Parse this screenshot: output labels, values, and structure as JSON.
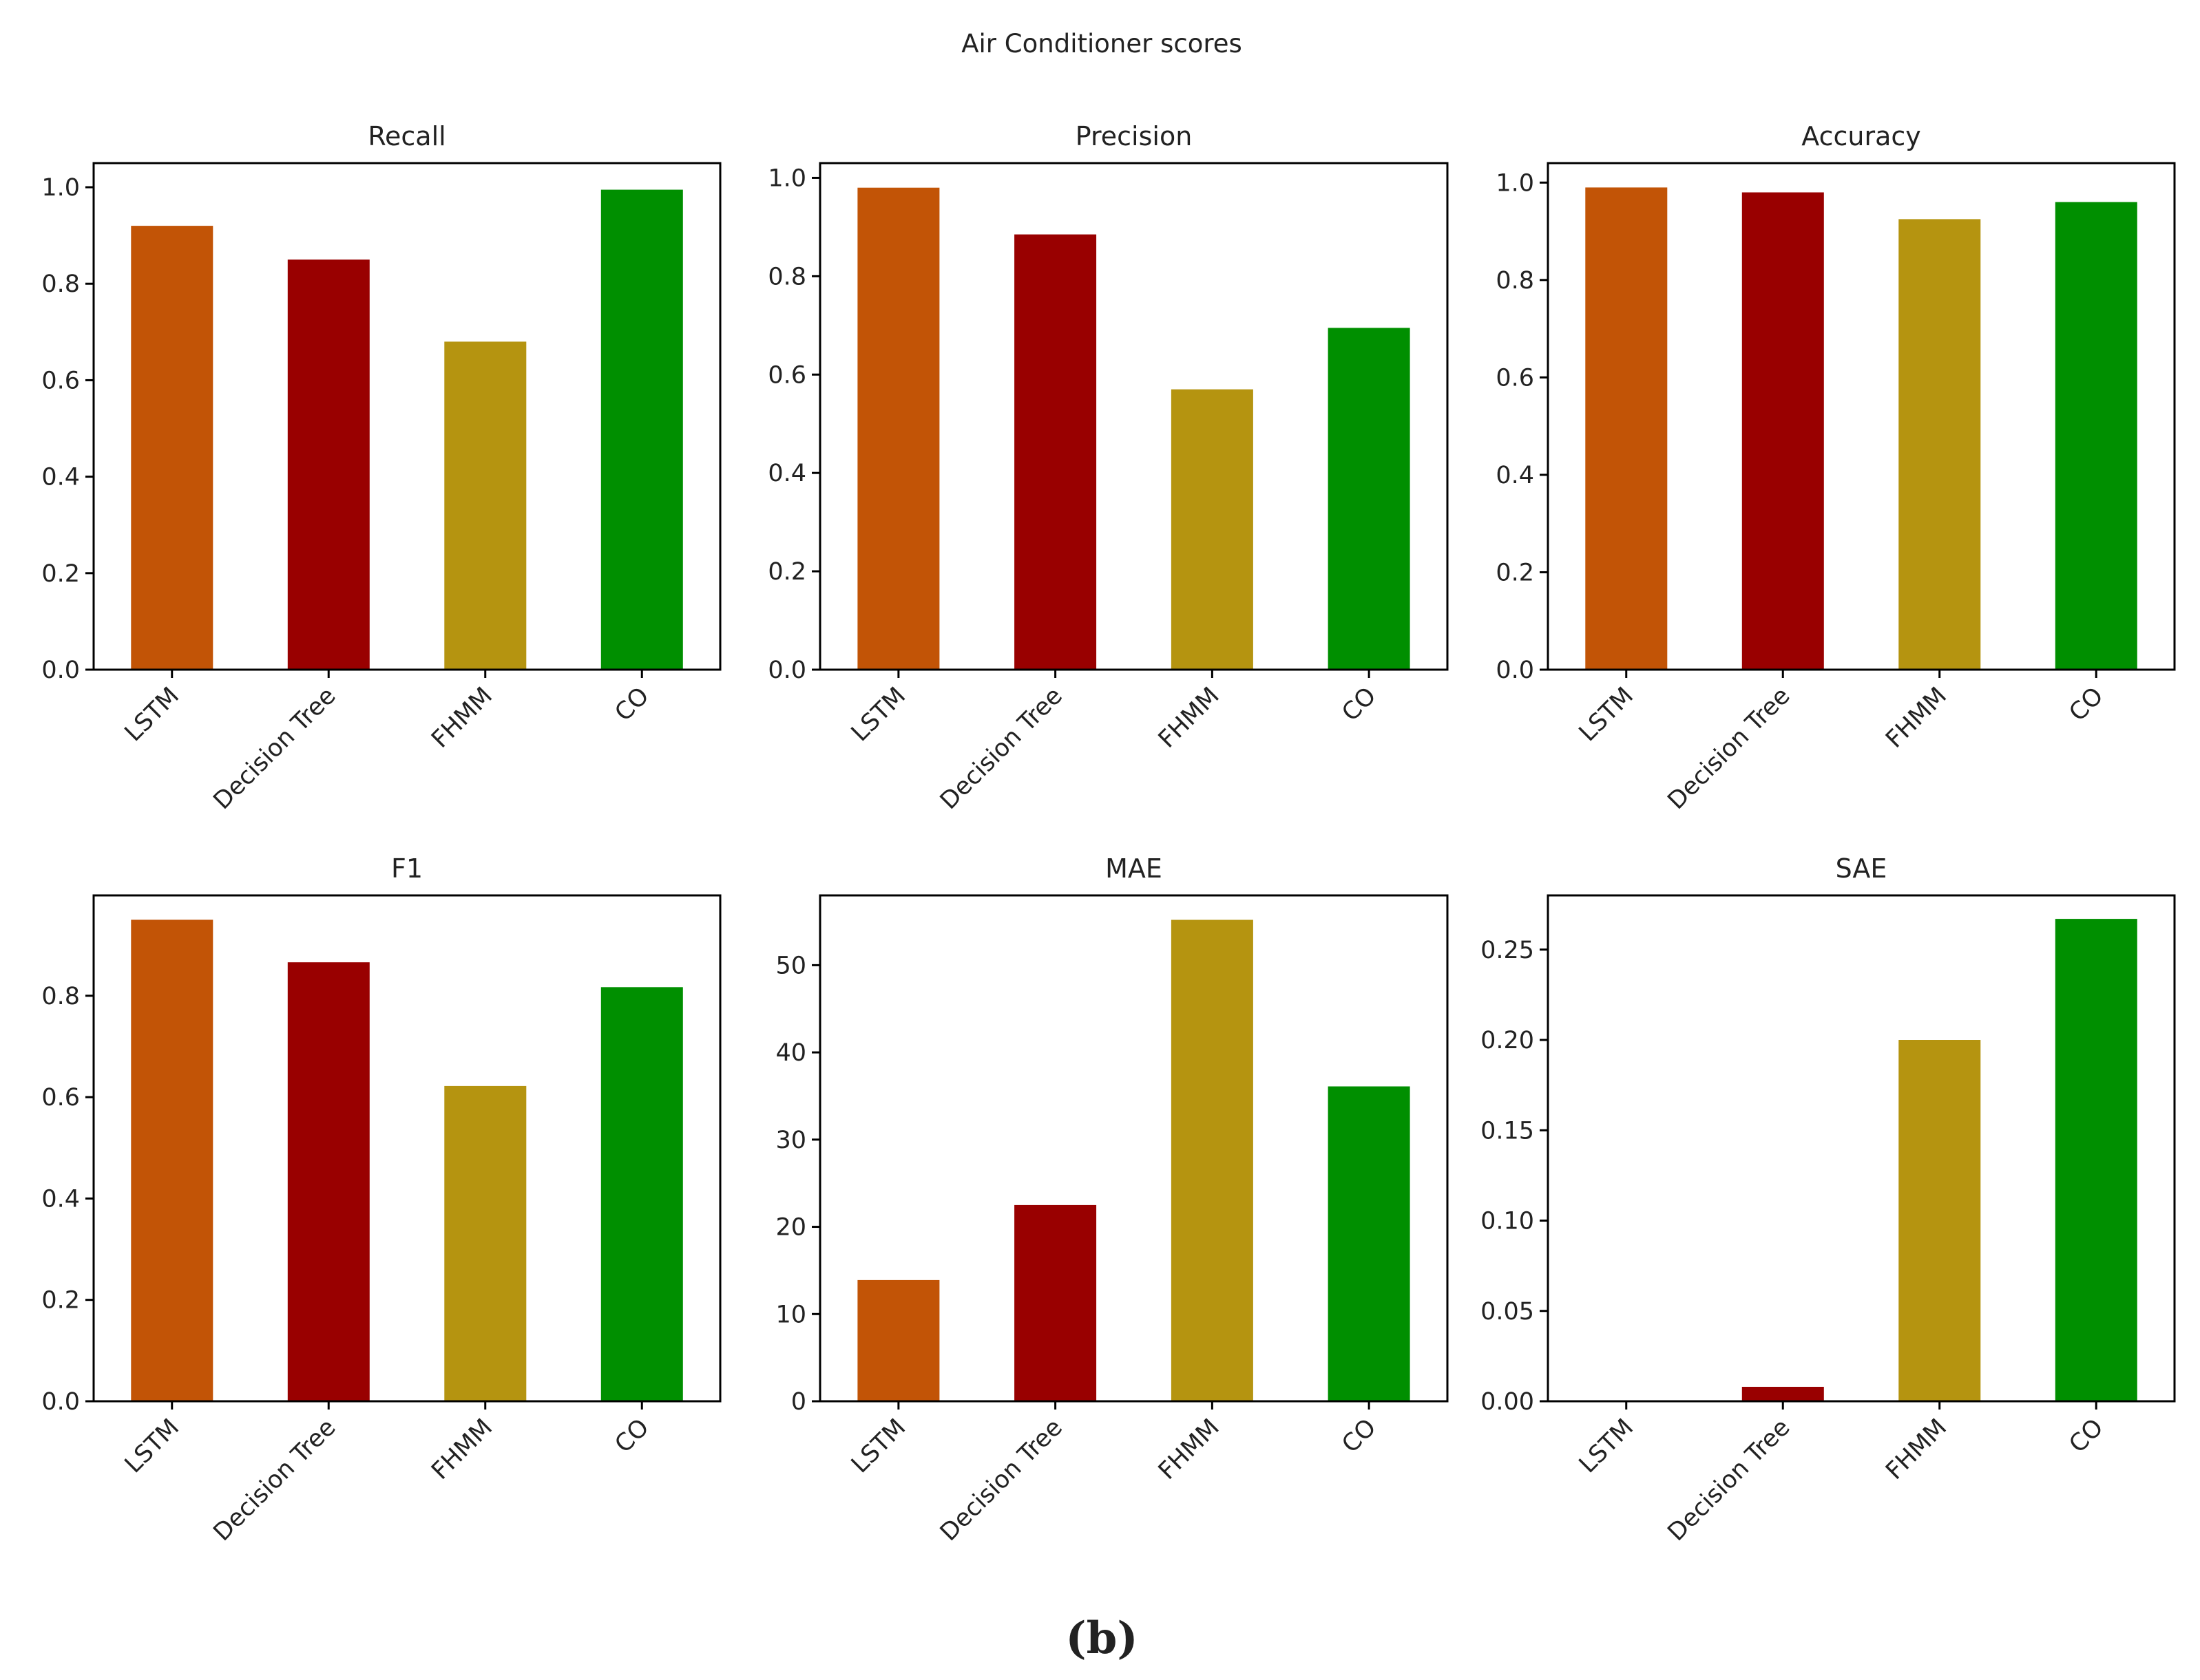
{
  "figure": {
    "title": "Air Conditioner scores",
    "caption": "(b)"
  },
  "colors": [
    "#c25406",
    "#990000",
    "#b59410",
    "#008f00"
  ],
  "chart_data": [
    {
      "type": "bar",
      "title": "Recall",
      "categories": [
        "LSTM",
        "Decision Tree",
        "FHMM",
        "CO"
      ],
      "values": [
        0.92,
        0.85,
        0.68,
        0.995
      ],
      "ylim": [
        0,
        1.05
      ],
      "yticks": [
        0.0,
        0.2,
        0.4,
        0.6,
        0.8,
        1.0
      ],
      "ytick_labels": [
        "0.0",
        "0.2",
        "0.4",
        "0.6",
        "0.8",
        "1.0"
      ],
      "xlabel": "",
      "ylabel": "",
      "grid": false
    },
    {
      "type": "bar",
      "title": "Precision",
      "categories": [
        "LSTM",
        "Decision Tree",
        "FHMM",
        "CO"
      ],
      "values": [
        0.98,
        0.885,
        0.57,
        0.695
      ],
      "ylim": [
        0,
        1.03
      ],
      "yticks": [
        0.0,
        0.2,
        0.4,
        0.6,
        0.8,
        1.0
      ],
      "ytick_labels": [
        "0.0",
        "0.2",
        "0.4",
        "0.6",
        "0.8",
        "1.0"
      ],
      "xlabel": "",
      "ylabel": "",
      "grid": false
    },
    {
      "type": "bar",
      "title": "Accuracy",
      "categories": [
        "LSTM",
        "Decision Tree",
        "FHMM",
        "CO"
      ],
      "values": [
        0.99,
        0.98,
        0.925,
        0.96
      ],
      "ylim": [
        0,
        1.04
      ],
      "yticks": [
        0.0,
        0.2,
        0.4,
        0.6,
        0.8,
        1.0
      ],
      "ytick_labels": [
        "0.0",
        "0.2",
        "0.4",
        "0.6",
        "0.8",
        "1.0"
      ],
      "xlabel": "",
      "ylabel": "",
      "grid": false
    },
    {
      "type": "bar",
      "title": "F1",
      "categories": [
        "LSTM",
        "Decision Tree",
        "FHMM",
        "CO"
      ],
      "values": [
        0.95,
        0.866,
        0.622,
        0.817
      ],
      "ylim": [
        0,
        0.998
      ],
      "yticks": [
        0.0,
        0.2,
        0.4,
        0.6,
        0.8
      ],
      "ytick_labels": [
        "0.0",
        "0.2",
        "0.4",
        "0.6",
        "0.8"
      ],
      "xlabel": "",
      "ylabel": "",
      "grid": false
    },
    {
      "type": "bar",
      "title": "MAE",
      "categories": [
        "LSTM",
        "Decision Tree",
        "FHMM",
        "CO"
      ],
      "values": [
        13.9,
        22.5,
        55.2,
        36.1
      ],
      "ylim": [
        0,
        58
      ],
      "yticks": [
        0,
        10,
        20,
        30,
        40,
        50
      ],
      "ytick_labels": [
        "0",
        "10",
        "20",
        "30",
        "40",
        "50"
      ],
      "xlabel": "",
      "ylabel": "",
      "grid": false
    },
    {
      "type": "bar",
      "title": "SAE",
      "categories": [
        "LSTM",
        "Decision Tree",
        "FHMM",
        "CO"
      ],
      "values": [
        0.0,
        0.008,
        0.2,
        0.267
      ],
      "ylim": [
        0,
        0.28
      ],
      "yticks": [
        0.0,
        0.05,
        0.1,
        0.15,
        0.2,
        0.25
      ],
      "ytick_labels": [
        "0.00",
        "0.05",
        "0.10",
        "0.15",
        "0.20",
        "0.25"
      ],
      "xlabel": "",
      "ylabel": "",
      "grid": false
    }
  ]
}
